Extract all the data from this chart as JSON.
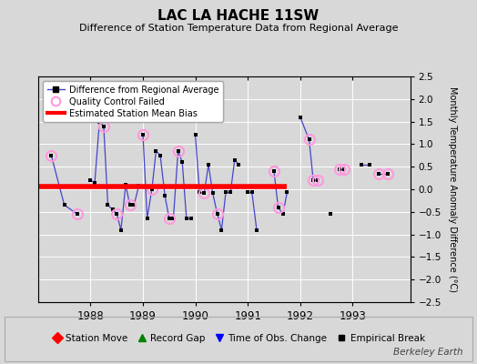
{
  "title": "LAC LA HACHE 11SW",
  "subtitle": "Difference of Station Temperature Data from Regional Average",
  "ylabel": "Monthly Temperature Anomaly Difference (°C)",
  "ylim": [
    -2.5,
    2.5
  ],
  "yticks": [
    -2.5,
    -2,
    -1.5,
    -1,
    -0.5,
    0,
    0.5,
    1,
    1.5,
    2,
    2.5
  ],
  "bg_color": "#d8d8d8",
  "bias_y": 0.07,
  "bias_x_start": 1987.0,
  "bias_x_end": 1991.75,
  "line_color": "#4444cc",
  "qc_marker_color": "#ff99dd",
  "xlim": [
    1987.0,
    1994.1
  ],
  "xticks": [
    1988,
    1989,
    1990,
    1991,
    1992,
    1993
  ],
  "segments": [
    [
      [
        1987.25,
        1987.5,
        1987.75
      ],
      [
        0.75,
        -0.35,
        -0.55
      ]
    ],
    [
      [
        1988.0,
        1988.08,
        1988.17,
        1988.25,
        1988.33,
        1988.42,
        1988.5,
        1988.58,
        1988.67,
        1988.75,
        1988.83,
        1988.92
      ],
      [
        0.2,
        0.15,
        1.5,
        1.4,
        -0.35,
        -0.45,
        -0.55,
        -0.9,
        0.1,
        -0.35,
        -0.35,
        0.08
      ]
    ],
    [
      [
        1989.0,
        1989.08,
        1989.17,
        1989.25,
        1989.33,
        1989.42,
        1989.5,
        1989.58,
        1989.67,
        1989.75,
        1989.83,
        1989.92
      ],
      [
        1.2,
        -0.65,
        0.0,
        0.85,
        0.75,
        -0.15,
        -0.65,
        -0.65,
        0.85,
        0.6,
        -0.65,
        -0.65
      ]
    ],
    [
      [
        1990.0,
        1990.08,
        1990.17,
        1990.25,
        1990.33,
        1990.42,
        1990.5,
        1990.58,
        1990.67,
        1990.75,
        1990.83
      ],
      [
        1.2,
        -0.07,
        -0.08,
        0.55,
        -0.08,
        -0.55,
        -0.9,
        -0.07,
        -0.07,
        0.65,
        0.55
      ]
    ],
    [
      [
        1991.0,
        1991.08,
        1991.17
      ],
      [
        -0.07,
        -0.07,
        -0.9
      ]
    ],
    [
      [
        1991.5,
        1991.58,
        1991.67,
        1991.75
      ],
      [
        0.4,
        -0.4,
        -0.55,
        -0.07
      ]
    ],
    [
      [
        1992.0,
        1992.17,
        1992.25,
        1992.33
      ],
      [
        1.6,
        1.1,
        0.2,
        0.2
      ]
    ],
    [
      [
        1992.58
      ],
      [
        -0.55
      ]
    ],
    [
      [
        1992.75,
        1992.83
      ],
      [
        0.45,
        0.45
      ]
    ],
    [
      [
        1993.17,
        1993.33
      ],
      [
        0.55,
        0.55
      ]
    ],
    [
      [
        1993.5,
        1993.67
      ],
      [
        0.35,
        0.35
      ]
    ]
  ],
  "all_points": [
    [
      1987.25,
      0.75
    ],
    [
      1987.5,
      -0.35
    ],
    [
      1987.75,
      -0.55
    ],
    [
      1988.0,
      0.2
    ],
    [
      1988.08,
      0.15
    ],
    [
      1988.17,
      1.5
    ],
    [
      1988.25,
      1.4
    ],
    [
      1988.33,
      -0.35
    ],
    [
      1988.42,
      -0.45
    ],
    [
      1988.5,
      -0.55
    ],
    [
      1988.58,
      -0.9
    ],
    [
      1988.67,
      0.1
    ],
    [
      1988.75,
      -0.35
    ],
    [
      1988.83,
      -0.35
    ],
    [
      1988.92,
      0.08
    ],
    [
      1989.0,
      1.2
    ],
    [
      1989.08,
      -0.65
    ],
    [
      1989.17,
      0.0
    ],
    [
      1989.25,
      0.85
    ],
    [
      1989.33,
      0.75
    ],
    [
      1989.42,
      -0.15
    ],
    [
      1989.5,
      -0.65
    ],
    [
      1989.58,
      -0.65
    ],
    [
      1989.67,
      0.85
    ],
    [
      1989.75,
      0.6
    ],
    [
      1989.83,
      -0.65
    ],
    [
      1989.92,
      -0.65
    ],
    [
      1990.0,
      1.2
    ],
    [
      1990.08,
      -0.07
    ],
    [
      1990.17,
      -0.08
    ],
    [
      1990.25,
      0.55
    ],
    [
      1990.33,
      -0.08
    ],
    [
      1990.42,
      -0.55
    ],
    [
      1990.5,
      -0.9
    ],
    [
      1990.58,
      -0.07
    ],
    [
      1990.67,
      -0.07
    ],
    [
      1990.75,
      0.65
    ],
    [
      1990.83,
      0.55
    ],
    [
      1991.0,
      -0.07
    ],
    [
      1991.08,
      -0.07
    ],
    [
      1991.17,
      -0.9
    ],
    [
      1991.5,
      0.4
    ],
    [
      1991.58,
      -0.4
    ],
    [
      1991.67,
      -0.55
    ],
    [
      1991.75,
      -0.07
    ],
    [
      1992.0,
      1.6
    ],
    [
      1992.17,
      1.1
    ],
    [
      1992.25,
      0.2
    ],
    [
      1992.33,
      0.2
    ],
    [
      1992.58,
      -0.55
    ],
    [
      1992.75,
      0.45
    ],
    [
      1992.83,
      0.45
    ],
    [
      1993.17,
      0.55
    ],
    [
      1993.33,
      0.55
    ],
    [
      1993.5,
      0.35
    ],
    [
      1993.67,
      0.35
    ]
  ],
  "qc_points": [
    [
      1987.25,
      0.75
    ],
    [
      1987.75,
      -0.55
    ],
    [
      1988.25,
      1.4
    ],
    [
      1988.5,
      -0.55
    ],
    [
      1988.75,
      -0.35
    ],
    [
      1989.0,
      1.2
    ],
    [
      1989.17,
      0.0
    ],
    [
      1989.5,
      -0.65
    ],
    [
      1989.67,
      0.85
    ],
    [
      1990.17,
      -0.08
    ],
    [
      1990.42,
      -0.55
    ],
    [
      1991.5,
      0.4
    ],
    [
      1991.58,
      -0.4
    ],
    [
      1992.17,
      1.1
    ],
    [
      1992.25,
      0.2
    ],
    [
      1992.33,
      0.2
    ],
    [
      1992.75,
      0.45
    ],
    [
      1992.83,
      0.45
    ],
    [
      1993.5,
      0.35
    ],
    [
      1993.67,
      0.35
    ]
  ]
}
